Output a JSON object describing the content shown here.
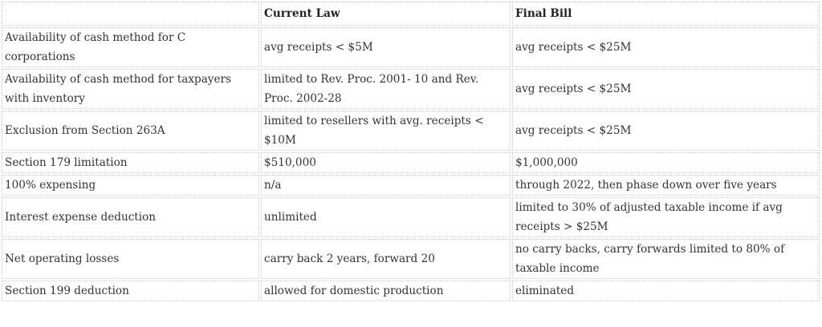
{
  "table": {
    "headers": [
      "",
      "Current Law",
      "Final Bill"
    ],
    "rows": [
      [
        "Availability of cash method for C corporations",
        "avg receipts < $5M",
        "avg receipts < $25M"
      ],
      [
        "Availability of cash method for taxpayers with inventory",
        "limited to Rev. Proc. 2001- 10 and Rev. Proc. 2002-28",
        "avg receipts < $25M"
      ],
      [
        "Exclusion from Section 263A",
        "limited to resellers with avg. receipts < $10M",
        "avg receipts < $25M"
      ],
      [
        "Section 179 limitation",
        "$510,000",
        "$1,000,000"
      ],
      [
        "100% expensing",
        "n/a",
        "through 2022, then phase down over five years"
      ],
      [
        "Interest expense deduction",
        "unlimited",
        "limited to 30% of adjusted taxable income if avg receipts > $25M"
      ],
      [
        "Net operating losses",
        "carry back 2 years, forward 20",
        "no carry backs, carry forwards limited to 80% of taxable income"
      ],
      [
        "Section 199 deduction",
        "allowed for domestic production",
        "eliminated"
      ]
    ]
  }
}
